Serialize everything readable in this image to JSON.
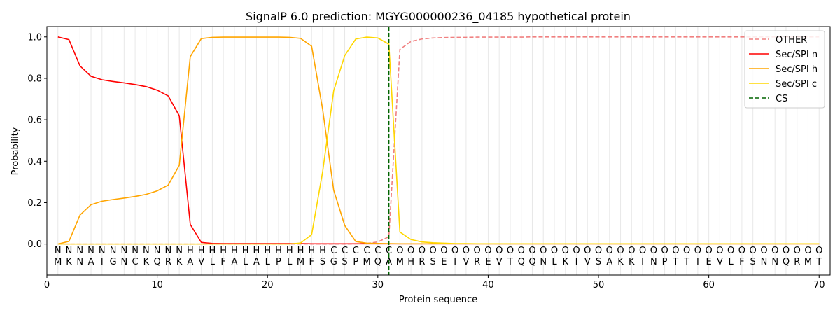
{
  "chart_data": {
    "type": "line",
    "title": "SignalP 6.0 prediction: MGYG000000236_04185 hypothetical protein",
    "xlabel": "Protein sequence",
    "ylabel": "Probability",
    "xlim": [
      0,
      71
    ],
    "ylim": [
      -0.15,
      1.05
    ],
    "x_ticks": [
      0,
      10,
      20,
      30,
      40,
      50,
      60,
      70
    ],
    "y_ticks": [
      0.0,
      0.2,
      0.4,
      0.6,
      0.8,
      1.0
    ],
    "x_tick_labels": [
      "0",
      "10",
      "20",
      "30",
      "40",
      "50",
      "60",
      "70"
    ],
    "y_tick_labels": [
      "0.0",
      "0.2",
      "0.4",
      "0.6",
      "0.8",
      "1.0"
    ],
    "legend_position": "upper right",
    "sequence": [
      "M",
      "K",
      "N",
      "A",
      "I",
      "G",
      "N",
      "C",
      "K",
      "Q",
      "R",
      "K",
      "A",
      "V",
      "L",
      "F",
      "A",
      "L",
      "A",
      "L",
      "P",
      "L",
      "M",
      "F",
      "S",
      "G",
      "S",
      "P",
      "M",
      "Q",
      "A",
      "M",
      "H",
      "R",
      "S",
      "E",
      "I",
      "V",
      "R",
      "E",
      "V",
      "T",
      "Q",
      "Q",
      "N",
      "L",
      "K",
      "I",
      "V",
      "S",
      "A",
      "K",
      "K",
      "I",
      "N",
      "P",
      "T",
      "T",
      "I",
      "E",
      "V",
      "L",
      "F",
      "S",
      "N",
      "N",
      "Q",
      "R",
      "M",
      "T"
    ],
    "region_labels": [
      "N",
      "N",
      "N",
      "N",
      "N",
      "N",
      "N",
      "N",
      "N",
      "N",
      "N",
      "N",
      "H",
      "H",
      "H",
      "H",
      "H",
      "H",
      "H",
      "H",
      "H",
      "H",
      "H",
      "H",
      "H",
      "C",
      "C",
      "C",
      "C",
      "C",
      "C",
      "O",
      "O",
      "O",
      "O",
      "O",
      "O",
      "O",
      "O",
      "O",
      "O",
      "O",
      "O",
      "O",
      "O",
      "O",
      "O",
      "O",
      "O",
      "O",
      "O",
      "O",
      "O",
      "O",
      "O",
      "O",
      "O",
      "O",
      "O",
      "O",
      "O",
      "O",
      "O",
      "O",
      "O",
      "O",
      "O",
      "O",
      "O",
      "O"
    ],
    "region_colors": {
      "N": "#ff0000",
      "H": "#ffa500",
      "C": "#ffd700",
      "O": "#808080"
    },
    "series": [
      {
        "name": "OTHER",
        "color": "#f08080",
        "dash": "dashed",
        "values": [
          0,
          0,
          0,
          0,
          0,
          0,
          0,
          0,
          0,
          0,
          0,
          0,
          0,
          0,
          0,
          0,
          0,
          0,
          0,
          0,
          0,
          0,
          0,
          0,
          0,
          0,
          0,
          0.001,
          0.003,
          0.01,
          0.035,
          0.94,
          0.978,
          0.99,
          0.995,
          0.997,
          0.998,
          0.998,
          0.999,
          0.999,
          0.999,
          0.999,
          0.999,
          1,
          1,
          1,
          1,
          1,
          1,
          1,
          1,
          1,
          1,
          1,
          1,
          1,
          1,
          1,
          1,
          1,
          1,
          1,
          1,
          1,
          1,
          1,
          1,
          1,
          1,
          1
        ]
      },
      {
        "name": "Sec/SPI n",
        "color": "#ff0000",
        "dash": "solid",
        "values": [
          1.0,
          0.987,
          0.86,
          0.81,
          0.793,
          0.785,
          0.778,
          0.77,
          0.76,
          0.743,
          0.715,
          0.62,
          0.095,
          0.008,
          0.003,
          0.002,
          0.002,
          0.002,
          0.002,
          0.002,
          0.002,
          0.002,
          0.002,
          0.001,
          0.001,
          0.001,
          0.001,
          0.001,
          0.001,
          0.001,
          0.001,
          0.001,
          0.001,
          0.001,
          0.001,
          0.001,
          0.001,
          0.001,
          0.001,
          0.001,
          0.001,
          0.001,
          0.001,
          0.001,
          0.001,
          0.001,
          0.001,
          0.001,
          0.001,
          0.001,
          0.001,
          0.001,
          0.001,
          0.001,
          0.001,
          0.001,
          0.001,
          0.001,
          0.001,
          0.001,
          0.001,
          0.001,
          0.001,
          0.001,
          0.001,
          0.001,
          0.001,
          0.001,
          0.001,
          0.001
        ]
      },
      {
        "name": "Sec/SPI h",
        "color": "#ffa500",
        "dash": "solid",
        "values": [
          0.0,
          0.013,
          0.14,
          0.19,
          0.207,
          0.215,
          0.222,
          0.23,
          0.24,
          0.257,
          0.285,
          0.38,
          0.905,
          0.992,
          0.998,
          0.999,
          0.999,
          0.999,
          0.999,
          0.999,
          0.999,
          0.998,
          0.993,
          0.955,
          0.65,
          0.26,
          0.09,
          0.012,
          0.004,
          0.003,
          0.002,
          0.001,
          0.001,
          0.001,
          0.001,
          0.001,
          0.001,
          0.001,
          0.001,
          0.001,
          0.001,
          0.001,
          0.001,
          0.001,
          0.001,
          0.001,
          0.001,
          0.001,
          0.001,
          0.001,
          0.001,
          0.001,
          0.001,
          0.001,
          0.001,
          0.001,
          0.001,
          0.001,
          0.001,
          0.001,
          0.001,
          0.001,
          0.001,
          0.001,
          0.001,
          0.001,
          0.001,
          0.001,
          0.001,
          0.001
        ]
      },
      {
        "name": "Sec/SPI c",
        "color": "#ffd700",
        "dash": "solid",
        "values": [
          0,
          0,
          0,
          0,
          0,
          0,
          0,
          0,
          0,
          0,
          0,
          0,
          0,
          0,
          0,
          0,
          0,
          0,
          0,
          0,
          0,
          0,
          0.005,
          0.045,
          0.35,
          0.74,
          0.91,
          0.99,
          0.999,
          0.995,
          0.965,
          0.058,
          0.022,
          0.01,
          0.006,
          0.004,
          0.002,
          0.002,
          0.001,
          0.001,
          0.001,
          0.001,
          0.001,
          0.001,
          0.001,
          0.001,
          0.001,
          0.001,
          0.001,
          0.001,
          0.001,
          0.001,
          0.001,
          0.001,
          0.001,
          0.001,
          0.001,
          0.001,
          0.001,
          0.001,
          0.001,
          0.001,
          0.001,
          0.001,
          0.001,
          0.001,
          0.001,
          0.001,
          0.001,
          0.001
        ]
      }
    ],
    "cleavage_site": {
      "name": "CS",
      "x": 31,
      "color": "#006400",
      "dash": "dashed"
    }
  }
}
